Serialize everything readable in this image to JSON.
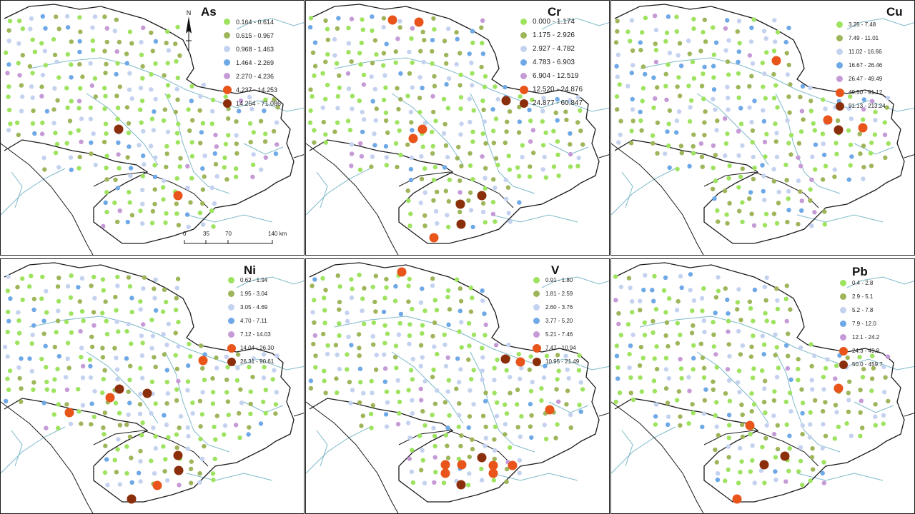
{
  "colors": {
    "c1": "#9ee35f",
    "c2": "#9eb55a",
    "c3": "#c4d2f0",
    "c4": "#6ea8e6",
    "c5": "#c59ad6",
    "c6": "#e8541a",
    "c7": "#8b2e0c",
    "border": "#1a1a1a",
    "river": "#7eb9c9"
  },
  "panels": [
    {
      "title": "As",
      "legend": [
        "0.164 - 0.614",
        "0.615 - 0.967",
        "0.968 - 1.463",
        "1.464 - 2.269",
        "2.270 - 4.236",
        "4.237 - 14.253",
        "14.254 - 71.086"
      ]
    },
    {
      "title": "Cr",
      "legend": [
        "0.000 - 1.174",
        "1.175 - 2.926",
        "2.927 - 4.782",
        "4.783 - 6.903",
        "6.904 - 12.519",
        "12.520 - 24.876",
        "24.877 - 60.847"
      ]
    },
    {
      "title": "Cu",
      "legend": [
        "3.25 - 7.48",
        "7.49 - 11.01",
        "11.02 - 16.66",
        "16.67 - 26.46",
        "26.47 - 49.49",
        "49.50 - 91.12",
        "91.13 - 213.24"
      ]
    },
    {
      "title": "Ni",
      "legend": [
        "0.62 - 1.94",
        "1.95 - 3.04",
        "3.05 - 4.69",
        "4.70 - 7.11",
        "7.12 - 14.03",
        "14.04 - 26.30",
        "26.31 - 90.61"
      ]
    },
    {
      "title": "V",
      "legend": [
        "0.91 - 1.80",
        "1.81 - 2.59",
        "2.60 - 3.76",
        "3.77 - 5.20",
        "5.21 - 7.46",
        "7.47 - 10.94",
        "10.95 - 21.49"
      ]
    },
    {
      "title": "Pb",
      "legend": [
        "0.4 - 2.8",
        "2.9 - 5.1",
        "5.2 - 7.8",
        "7.9 - 12.0",
        "12.1 - 24.2",
        "24.3 - 49.9",
        "50.0 - 459.7"
      ]
    }
  ],
  "north_label": "N",
  "scale": {
    "ticks": [
      "0",
      "35",
      "70",
      "140 km"
    ]
  }
}
